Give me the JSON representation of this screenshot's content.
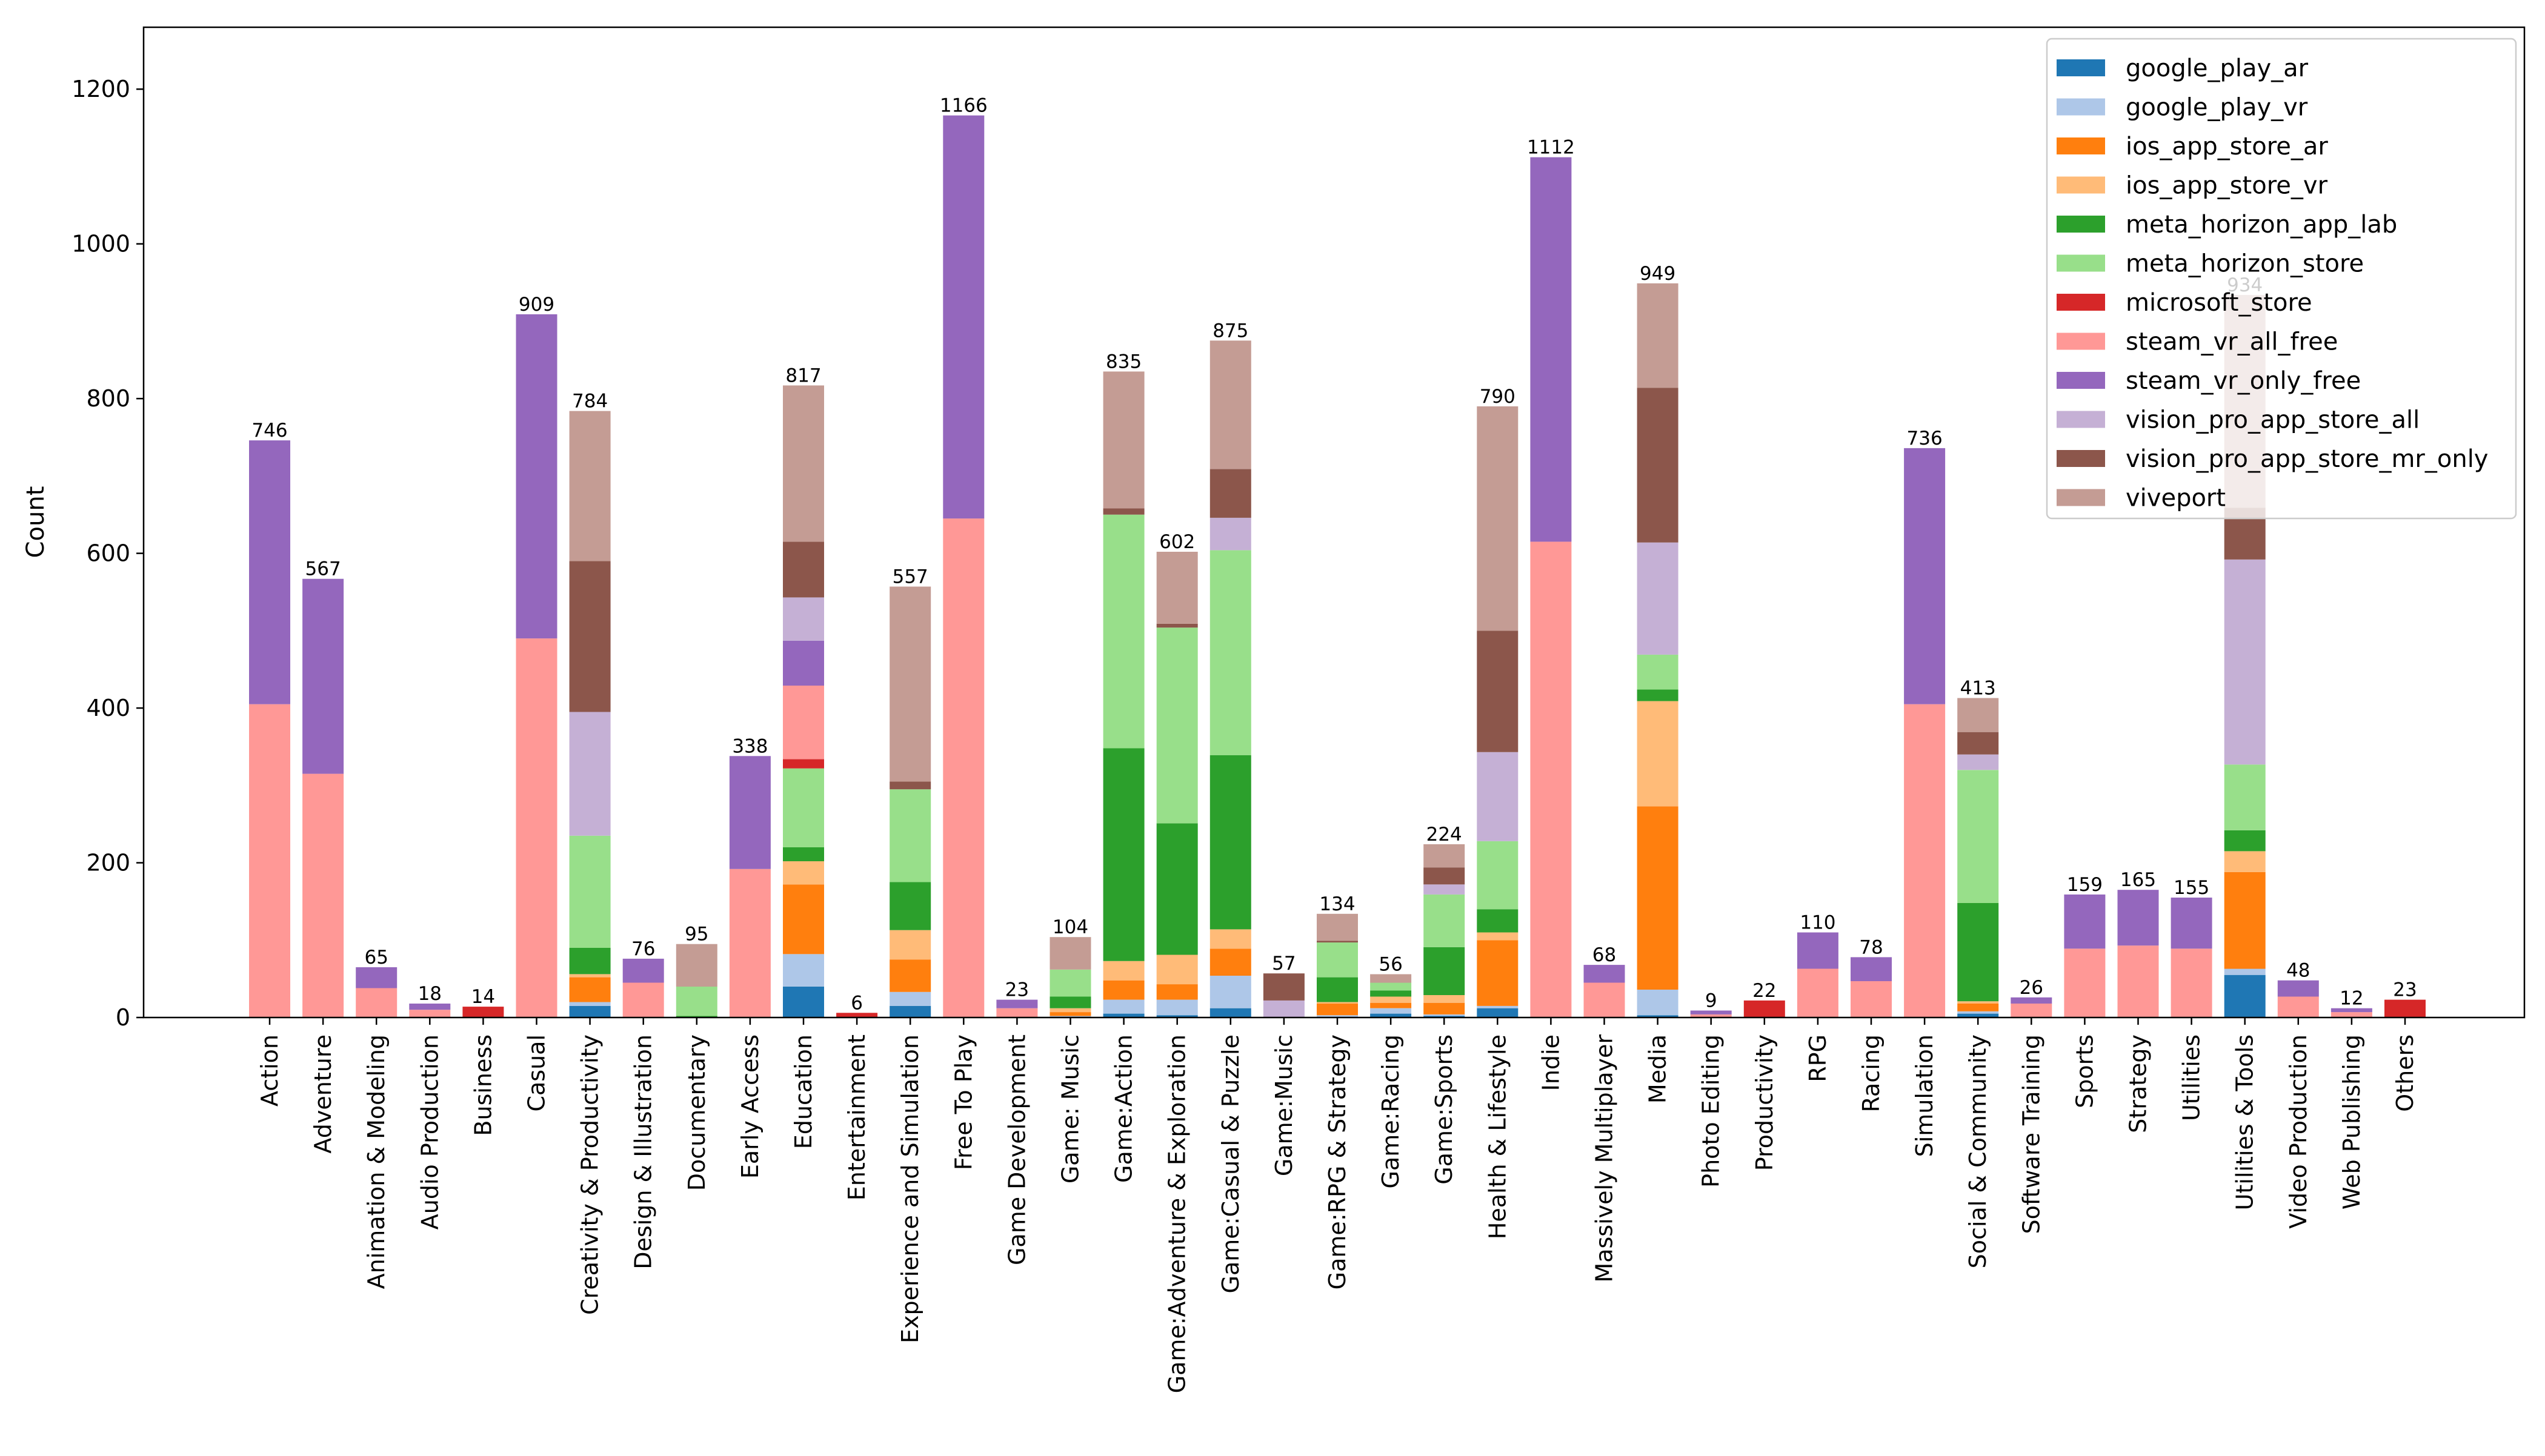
{
  "chart_data": {
    "type": "bar",
    "stacked": true,
    "title": "",
    "xlabel": "",
    "ylabel": "Count",
    "ylim": [
      0,
      1280
    ],
    "yticks": [
      0,
      200,
      400,
      600,
      800,
      1000,
      1200
    ],
    "legend_position": "top-right",
    "series_names": [
      "google_play_ar",
      "google_play_vr",
      "ios_app_store_ar",
      "ios_app_store_vr",
      "meta_horizon_app_lab",
      "meta_horizon_store",
      "microsoft_store",
      "steam_vr_all_free",
      "steam_vr_only_free",
      "vision_pro_app_store_all",
      "vision_pro_app_store_mr_only",
      "viveport"
    ],
    "series_colors": [
      "#1f77b4",
      "#aec7e8",
      "#ff7f0e",
      "#ffbb78",
      "#2ca02c",
      "#98df8a",
      "#d62728",
      "#ff9896",
      "#9467bd",
      "#c5b0d5",
      "#8c564b",
      "#c49c94"
    ],
    "categories": [
      {
        "name": "Action",
        "total": "746",
        "values": [
          0,
          0,
          0,
          0,
          0,
          0,
          0,
          405,
          341,
          0,
          0,
          0
        ]
      },
      {
        "name": "Adventure",
        "total": "567",
        "values": [
          0,
          0,
          0,
          0,
          0,
          0,
          0,
          315,
          252,
          0,
          0,
          0
        ]
      },
      {
        "name": "Animation & Modeling",
        "total": "65",
        "values": [
          0,
          0,
          0,
          0,
          0,
          0,
          0,
          38,
          27,
          0,
          0,
          0
        ]
      },
      {
        "name": "Audio Production",
        "total": "18",
        "values": [
          0,
          0,
          0,
          0,
          0,
          0,
          0,
          10,
          8,
          0,
          0,
          0
        ]
      },
      {
        "name": "Business",
        "total": "14",
        "values": [
          0,
          0,
          0,
          0,
          0,
          0,
          14,
          0,
          0,
          0,
          0,
          0
        ]
      },
      {
        "name": "Casual",
        "total": "909",
        "values": [
          0,
          0,
          0,
          0,
          0,
          0,
          0,
          490,
          419,
          0,
          0,
          0
        ]
      },
      {
        "name": "Creativity & Productivity",
        "total": "784",
        "values": [
          15,
          5,
          32,
          4,
          34,
          145,
          0,
          0,
          0,
          160,
          195,
          194
        ]
      },
      {
        "name": "Design & Illustration",
        "total": "76",
        "values": [
          0,
          0,
          0,
          0,
          0,
          0,
          0,
          45,
          31,
          0,
          0,
          0
        ]
      },
      {
        "name": "Documentary",
        "total": "95",
        "values": [
          0,
          0,
          0,
          0,
          2,
          38,
          0,
          0,
          0,
          0,
          0,
          55
        ]
      },
      {
        "name": "Early Access",
        "total": "338",
        "values": [
          0,
          0,
          0,
          0,
          0,
          0,
          0,
          192,
          146,
          0,
          0,
          0
        ]
      },
      {
        "name": "Education",
        "total": "817",
        "values": [
          40,
          42,
          90,
          30,
          18,
          102,
          12,
          95,
          58,
          56,
          72,
          202
        ]
      },
      {
        "name": "Entertainment",
        "total": "6",
        "values": [
          0,
          0,
          0,
          0,
          0,
          0,
          6,
          0,
          0,
          0,
          0,
          0
        ]
      },
      {
        "name": "Experience and Simulation",
        "total": "557",
        "values": [
          15,
          18,
          42,
          38,
          62,
          120,
          0,
          0,
          0,
          0,
          10,
          252
        ]
      },
      {
        "name": "Free To Play",
        "total": "1166",
        "values": [
          0,
          0,
          0,
          0,
          0,
          0,
          0,
          645,
          521,
          0,
          0,
          0
        ]
      },
      {
        "name": "Game Development",
        "total": "23",
        "values": [
          0,
          0,
          0,
          0,
          0,
          0,
          0,
          12,
          11,
          0,
          0,
          0
        ]
      },
      {
        "name": "Game: Music",
        "total": "104",
        "values": [
          0,
          2,
          5,
          5,
          15,
          35,
          0,
          0,
          0,
          0,
          0,
          42
        ]
      },
      {
        "name": "Game:Action",
        "total": "835",
        "values": [
          5,
          18,
          25,
          25,
          275,
          302,
          0,
          0,
          0,
          0,
          8,
          177
        ]
      },
      {
        "name": "Game:Adventure & Exploration",
        "total": "602",
        "values": [
          3,
          20,
          20,
          38,
          170,
          253,
          0,
          0,
          0,
          0,
          5,
          93
        ]
      },
      {
        "name": "Game:Casual & Puzzle",
        "total": "875",
        "values": [
          12,
          42,
          35,
          25,
          225,
          265,
          0,
          0,
          0,
          42,
          63,
          166
        ]
      },
      {
        "name": "Game:Music",
        "total": "57",
        "values": [
          0,
          0,
          0,
          0,
          0,
          0,
          0,
          0,
          0,
          22,
          35,
          0
        ]
      },
      {
        "name": "Game:RPG & Strategy",
        "total": "134",
        "values": [
          0,
          3,
          15,
          2,
          32,
          45,
          0,
          0,
          0,
          0,
          2,
          35
        ]
      },
      {
        "name": "Game:Racing",
        "total": "56",
        "values": [
          5,
          7,
          7,
          8,
          8,
          10,
          0,
          0,
          0,
          0,
          0,
          11
        ]
      },
      {
        "name": "Game:Sports",
        "total": "224",
        "values": [
          2,
          2,
          15,
          10,
          62,
          68,
          0,
          0,
          0,
          13,
          22,
          30
        ]
      },
      {
        "name": "Health & Lifestyle",
        "total": "790",
        "values": [
          12,
          3,
          85,
          10,
          30,
          88,
          0,
          0,
          0,
          115,
          157,
          290
        ]
      },
      {
        "name": "Indie",
        "total": "1112",
        "values": [
          0,
          0,
          0,
          0,
          0,
          0,
          0,
          615,
          497,
          0,
          0,
          0
        ]
      },
      {
        "name": "Massively Multiplayer",
        "total": "68",
        "values": [
          0,
          0,
          0,
          0,
          0,
          0,
          0,
          45,
          23,
          0,
          0,
          0
        ]
      },
      {
        "name": "Media",
        "total": "949",
        "values": [
          3,
          33,
          237,
          136,
          15,
          45,
          0,
          0,
          0,
          145,
          200,
          135
        ]
      },
      {
        "name": "Photo Editing",
        "total": "9",
        "values": [
          0,
          0,
          0,
          0,
          0,
          0,
          0,
          4,
          5,
          0,
          0,
          0
        ]
      },
      {
        "name": "Productivity",
        "total": "22",
        "values": [
          0,
          0,
          0,
          0,
          0,
          0,
          22,
          0,
          0,
          0,
          0,
          0
        ]
      },
      {
        "name": "RPG",
        "total": "110",
        "values": [
          0,
          0,
          0,
          0,
          0,
          0,
          0,
          63,
          47,
          0,
          0,
          0
        ]
      },
      {
        "name": "Racing",
        "total": "78",
        "values": [
          0,
          0,
          0,
          0,
          0,
          0,
          0,
          47,
          31,
          0,
          0,
          0
        ]
      },
      {
        "name": "Simulation",
        "total": "736",
        "values": [
          0,
          0,
          0,
          0,
          0,
          0,
          0,
          405,
          331,
          0,
          0,
          0
        ]
      },
      {
        "name": "Social & Community",
        "total": "413",
        "values": [
          5,
          3,
          10,
          3,
          127,
          172,
          0,
          0,
          0,
          20,
          29,
          44
        ]
      },
      {
        "name": "Software Training",
        "total": "26",
        "values": [
          0,
          0,
          0,
          0,
          0,
          0,
          0,
          18,
          8,
          0,
          0,
          0
        ]
      },
      {
        "name": "Sports",
        "total": "159",
        "values": [
          0,
          0,
          0,
          0,
          0,
          0,
          0,
          89,
          70,
          0,
          0,
          0
        ]
      },
      {
        "name": "Strategy",
        "total": "165",
        "values": [
          0,
          0,
          0,
          0,
          0,
          0,
          0,
          93,
          72,
          0,
          0,
          0
        ]
      },
      {
        "name": "Utilities",
        "total": "155",
        "values": [
          0,
          0,
          0,
          0,
          0,
          0,
          0,
          89,
          66,
          0,
          0,
          0
        ]
      },
      {
        "name": "Utilities & Tools",
        "total": "934",
        "values": [
          55,
          8,
          125,
          27,
          27,
          85,
          0,
          0,
          0,
          265,
          67,
          275
        ]
      },
      {
        "name": "Video Production",
        "total": "48",
        "values": [
          0,
          0,
          0,
          0,
          0,
          0,
          0,
          27,
          21,
          0,
          0,
          0
        ]
      },
      {
        "name": "Web Publishing",
        "total": "12",
        "values": [
          0,
          0,
          0,
          0,
          0,
          0,
          0,
          7,
          5,
          0,
          0,
          0
        ]
      },
      {
        "name": "Others",
        "total": "23",
        "values": [
          0,
          0,
          0,
          0,
          0,
          0,
          23,
          0,
          0,
          0,
          0,
          0
        ]
      }
    ]
  }
}
